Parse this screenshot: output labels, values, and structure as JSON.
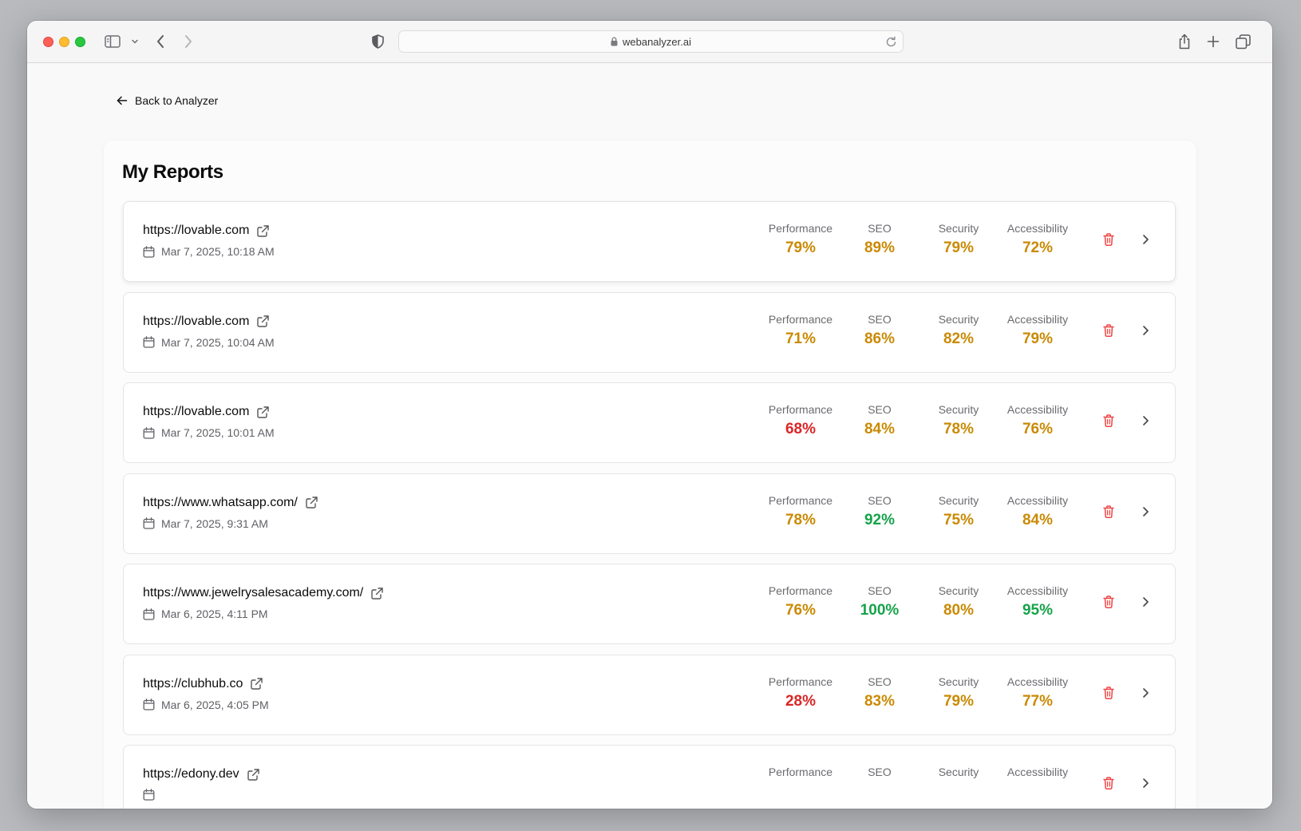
{
  "browser": {
    "url": "webanalyzer.ai"
  },
  "nav": {
    "back_label": "Back to Analyzer"
  },
  "page": {
    "title": "My Reports"
  },
  "metric_labels": {
    "performance": "Performance",
    "seo": "SEO",
    "security": "Security",
    "accessibility": "Accessibility"
  },
  "colors": {
    "good": "#16a34a",
    "average": "#ca8a04",
    "poor": "#dc2626",
    "delete": "#ef4444"
  },
  "reports": [
    {
      "url": "https://lovable.com",
      "date": "Mar 7, 2025, 10:18 AM",
      "performance": {
        "value": "79%",
        "status": "average"
      },
      "seo": {
        "value": "89%",
        "status": "average"
      },
      "security": {
        "value": "79%",
        "status": "average"
      },
      "accessibility": {
        "value": "72%",
        "status": "average"
      }
    },
    {
      "url": "https://lovable.com",
      "date": "Mar 7, 2025, 10:04 AM",
      "performance": {
        "value": "71%",
        "status": "average"
      },
      "seo": {
        "value": "86%",
        "status": "average"
      },
      "security": {
        "value": "82%",
        "status": "average"
      },
      "accessibility": {
        "value": "79%",
        "status": "average"
      }
    },
    {
      "url": "https://lovable.com",
      "date": "Mar 7, 2025, 10:01 AM",
      "performance": {
        "value": "68%",
        "status": "poor"
      },
      "seo": {
        "value": "84%",
        "status": "average"
      },
      "security": {
        "value": "78%",
        "status": "average"
      },
      "accessibility": {
        "value": "76%",
        "status": "average"
      }
    },
    {
      "url": "https://www.whatsapp.com/",
      "date": "Mar 7, 2025, 9:31 AM",
      "performance": {
        "value": "78%",
        "status": "average"
      },
      "seo": {
        "value": "92%",
        "status": "good"
      },
      "security": {
        "value": "75%",
        "status": "average"
      },
      "accessibility": {
        "value": "84%",
        "status": "average"
      }
    },
    {
      "url": "https://www.jewelrysalesacademy.com/",
      "date": "Mar 6, 2025, 4:11 PM",
      "performance": {
        "value": "76%",
        "status": "average"
      },
      "seo": {
        "value": "100%",
        "status": "good"
      },
      "security": {
        "value": "80%",
        "status": "average"
      },
      "accessibility": {
        "value": "95%",
        "status": "good"
      }
    },
    {
      "url": "https://clubhub.co",
      "date": "Mar 6, 2025, 4:05 PM",
      "performance": {
        "value": "28%",
        "status": "poor"
      },
      "seo": {
        "value": "83%",
        "status": "average"
      },
      "security": {
        "value": "79%",
        "status": "average"
      },
      "accessibility": {
        "value": "77%",
        "status": "average"
      }
    },
    {
      "url": "https://edony.dev",
      "date": "",
      "performance": {
        "value": "",
        "status": "average"
      },
      "seo": {
        "value": "",
        "status": "average"
      },
      "security": {
        "value": "",
        "status": "average"
      },
      "accessibility": {
        "value": "",
        "status": "average"
      }
    }
  ]
}
